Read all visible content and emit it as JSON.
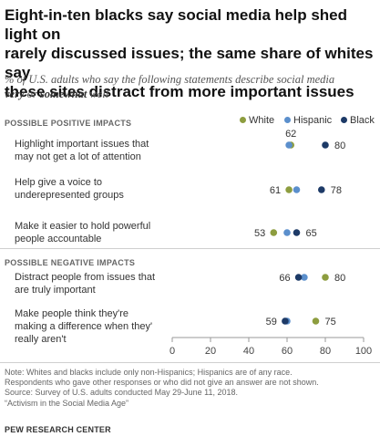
{
  "title_lines": [
    "Eight-in-ten blacks say social media help shed light on",
    "rarely discussed issues; the same share of whites say",
    "these sites distract from more important issues"
  ],
  "subtitle": {
    "part1": "% of U.S. adults who say the following statements describe social media",
    "bold1": "very",
    "mid": " or ",
    "bold2": "somewhat",
    "end": " well"
  },
  "sections": {
    "positive": "POSSIBLE POSITIVE IMPACTS",
    "negative": "POSSIBLE NEGATIVE IMPACTS"
  },
  "legend": [
    {
      "name": "White",
      "color": "#8d9d3f"
    },
    {
      "name": "Hispanic",
      "color": "#5b8fcc"
    },
    {
      "name": "Black",
      "color": "#1d3a67"
    }
  ],
  "rows": [
    {
      "label_lines": [
        "Highlight important issues that",
        "may not get a lot of attention"
      ]
    },
    {
      "label_lines": [
        "Help give a voice to",
        "underepresented groups"
      ]
    },
    {
      "label_lines": [
        "Make it easier to hold powerful",
        "people accountable"
      ]
    },
    {
      "label_lines": [
        "Distract people from issues that",
        "are truly important"
      ]
    },
    {
      "label_lines": [
        "Make people think they're",
        "making a difference when they'",
        "really aren't"
      ]
    }
  ],
  "chart_data": {
    "type": "scatter",
    "title": "Eight-in-ten blacks say social media help shed light on rarely discussed issues; the same share of whites say these sites distract from more important issues",
    "xlim": [
      0,
      100
    ],
    "xticks": [
      0,
      20,
      40,
      60,
      80,
      100
    ],
    "categories": [
      "Highlight important issues that may not get a lot of attention",
      "Help give a voice to underepresented groups",
      "Make it easier to hold powerful people accountable",
      "Distract people from issues that are truly important",
      "Make people think they're making a difference when they' really aren't"
    ],
    "series": [
      {
        "name": "White",
        "values": [
          62,
          61,
          53,
          80,
          75
        ]
      },
      {
        "name": "Hispanic",
        "values": [
          61,
          65,
          60,
          69,
          60
        ]
      },
      {
        "name": "Black",
        "values": [
          80,
          78,
          65,
          66,
          59
        ]
      }
    ],
    "data_labels": [
      {
        "row": 0,
        "series": "White",
        "text": "62"
      },
      {
        "row": 0,
        "series": "Black",
        "text": "80"
      },
      {
        "row": 1,
        "series": "White",
        "text": "61"
      },
      {
        "row": 1,
        "series": "Black",
        "text": "78"
      },
      {
        "row": 2,
        "series": "White",
        "text": "53"
      },
      {
        "row": 2,
        "series": "Black",
        "text": "65"
      },
      {
        "row": 3,
        "series": "Black",
        "text": "66"
      },
      {
        "row": 3,
        "series": "White",
        "text": "80"
      },
      {
        "row": 4,
        "series": "Black",
        "text": "59"
      },
      {
        "row": 4,
        "series": "White",
        "text": "75"
      }
    ],
    "legend_position": "top-right",
    "grid": false
  },
  "note_lines": [
    "Note: Whites and blacks include only non-Hispanics; Hispanics are of any race.",
    "Respondents who gave other responses or who did not give an answer are not shown.",
    "Source: Survey of U.S. adults conducted May 29-June 11, 2018.",
    "“Activism in the Social Media Age”"
  ],
  "source_org": "PEW RESEARCH CENTER"
}
